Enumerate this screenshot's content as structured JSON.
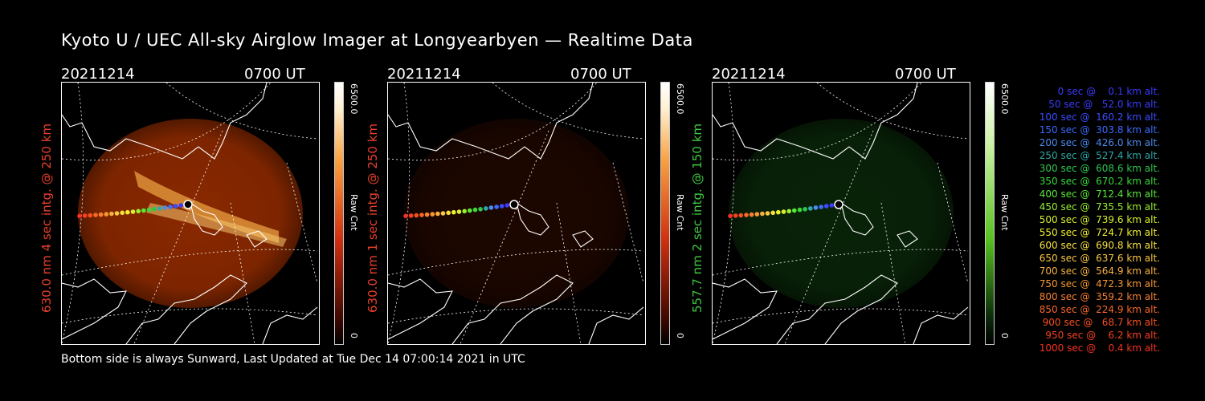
{
  "title": "Kyoto U / UEC All-sky Airglow Imager at Longyearbyen — Realtime Data",
  "footer": "Bottom side is always Sunward, Last Updated at Tue Dec 14 07:00:14 2021 in UTC",
  "panels": [
    {
      "date": "20211214",
      "time": "0700 UT",
      "ylabel": "630.0 nm 4 sec intg. @ 250 km",
      "ylabel_color": "#e8402a",
      "colorbar_max": "6500.0",
      "colorbar_unit": "Raw Cnt",
      "colorbar_min": "0",
      "colormap": "red",
      "glow": "#a33000",
      "glow_intensity": 0.85
    },
    {
      "date": "20211214",
      "time": "0700 UT",
      "ylabel": "630.0 nm 1 sec intg. @ 250 km",
      "ylabel_color": "#e8402a",
      "colorbar_max": "6500.0",
      "colorbar_unit": "Raw Cnt",
      "colorbar_min": "0",
      "colormap": "red",
      "glow": "#3a0c00",
      "glow_intensity": 0.5
    },
    {
      "date": "20211214",
      "time": "0700 UT",
      "ylabel": "557.7 nm 2 sec intg. @ 150 km",
      "ylabel_color": "#3ec83e",
      "colorbar_max": "6500.0",
      "colorbar_unit": "Raw Cnt",
      "colorbar_min": "0",
      "colormap": "green",
      "glow": "#0e3a0e",
      "glow_intensity": 0.6
    }
  ],
  "legend": [
    {
      "text": "   0 sec @    0.1 km alt.",
      "color": "#3a3aff"
    },
    {
      "text": "  50 sec @   52.0 km alt.",
      "color": "#3a3aff"
    },
    {
      "text": " 100 sec @  160.2 km alt.",
      "color": "#3a4cff"
    },
    {
      "text": " 150 sec @  303.8 km alt.",
      "color": "#3a6cff"
    },
    {
      "text": " 200 sec @  426.0 km alt.",
      "color": "#4a8cf0"
    },
    {
      "text": " 250 sec @  527.4 km alt.",
      "color": "#2fa8a8"
    },
    {
      "text": " 300 sec @  608.6 km alt.",
      "color": "#2ec850"
    },
    {
      "text": " 350 sec @  670.2 km alt.",
      "color": "#38d838"
    },
    {
      "text": " 400 sec @  712.4 km alt.",
      "color": "#58e838"
    },
    {
      "text": " 450 sec @  735.5 km alt.",
      "color": "#98f030"
    },
    {
      "text": " 500 sec @  739.6 km alt.",
      "color": "#d8f030"
    },
    {
      "text": " 550 sec @  724.7 km alt.",
      "color": "#f0f030"
    },
    {
      "text": " 600 sec @  690.8 km alt.",
      "color": "#f8e040"
    },
    {
      "text": " 650 sec @  637.6 km alt.",
      "color": "#f8c840"
    },
    {
      "text": " 700 sec @  564.9 km alt.",
      "color": "#f8b040"
    },
    {
      "text": " 750 sec @  472.3 km alt.",
      "color": "#f89830"
    },
    {
      "text": " 800 sec @  359.2 km alt.",
      "color": "#f88030"
    },
    {
      "text": " 850 sec @  224.9 km alt.",
      "color": "#f86828"
    },
    {
      "text": " 900 sec @   68.7 km alt.",
      "color": "#f85020"
    },
    {
      "text": " 950 sec @    6.2 km alt.",
      "color": "#f84020"
    },
    {
      "text": "1000 sec @    0.4 km alt.",
      "color": "#f83020"
    }
  ]
}
